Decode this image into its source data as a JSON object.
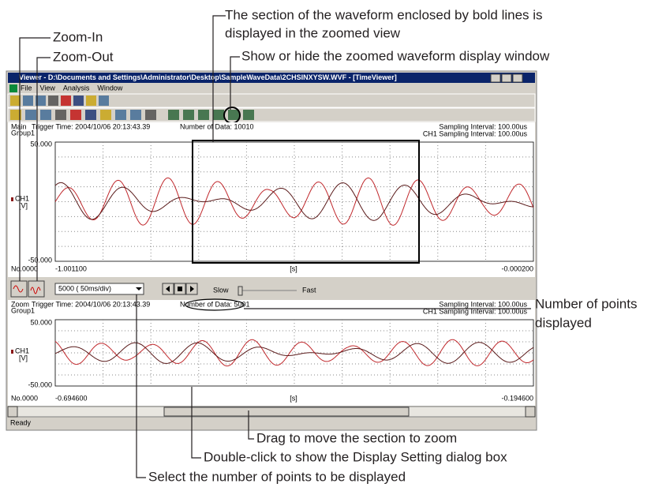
{
  "annotations": {
    "section_note": [
      "The section of the waveform enclosed by bold lines is",
      "displayed in the zoomed view"
    ],
    "zoom_in": "Zoom-In",
    "zoom_out": "Zoom-Out",
    "show_hide": "Show or hide the zoomed waveform display window",
    "points_displayed": [
      "Number of points",
      "displayed"
    ],
    "drag": "Drag to move the section to zoom",
    "double_click": "Double-click to show the Display Setting dialog box",
    "select_points": "Select the number of points to be displayed"
  },
  "window": {
    "title": "Viewer - D:\\Documents and Settings\\Administrator\\Desktop\\SampleWaveData\\2CHSINXYSW.WVF - [TimeViewer]",
    "menu": [
      "File",
      "View",
      "Analysis",
      "Window"
    ]
  },
  "main_panel": {
    "label": "Main",
    "trigger": "Trigger Time: 2004/10/06 20:13:43.39",
    "group": "Group1",
    "number_of_data": "Number of Data: 10010",
    "sampling": "Sampling Interval: 100.00us",
    "ch_sampling": "CH1 Sampling Interval: 100.00us",
    "y_top": "50.000",
    "y_bottom": "-50.000",
    "channel": "CH1",
    "unit": "[V]",
    "number": "No.0000",
    "x_start": "-1.001100",
    "x_unit": "[s]",
    "x_end": "-0.000200"
  },
  "zoom_bar": {
    "points": "5000  ( 50ms/div)",
    "slow": "Slow",
    "fast": "Fast"
  },
  "zoom_panel": {
    "label": "Zoom",
    "trigger": "Trigger Time: 2004/10/06 20:13:43.39",
    "group": "Group1",
    "number_of_data": "Number of Data: 5001",
    "sampling": "Sampling Interval: 100.00us",
    "ch_sampling": "CH1 Sampling Interval: 100.00us",
    "y_top": "50.000",
    "y_bottom": "-50.000",
    "channel": "CH1",
    "unit": "[V]",
    "number": "No.0000",
    "x_start": "-0.694600",
    "x_unit": "[s]",
    "x_end": "-0.194600"
  },
  "status": "Ready"
}
